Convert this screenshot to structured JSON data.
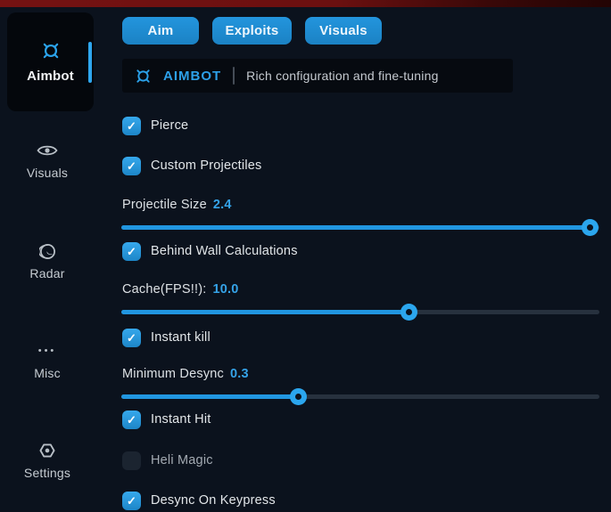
{
  "colors": {
    "accent_blue": "#2196dd",
    "checkbox_blue": "#2d9ce4",
    "value_blue": "#35a3e8",
    "top_strip_red": "#6e1010",
    "background": "#0b121d"
  },
  "icons": {
    "check_glyph": "✓",
    "ellipsis_glyph": "•••"
  },
  "sidebar": {
    "items": [
      {
        "id": "aimbot",
        "label": "Aimbot",
        "icon": "crosshair-icon",
        "active": true
      },
      {
        "id": "visuals",
        "label": "Visuals",
        "icon": "eye-icon",
        "active": false
      },
      {
        "id": "radar",
        "label": "Radar",
        "icon": "globe-icon",
        "active": false
      },
      {
        "id": "misc",
        "label": "Misc",
        "icon": "ellipsis-icon",
        "active": false
      },
      {
        "id": "settings",
        "label": "Settings",
        "icon": "gear-icon",
        "active": false
      }
    ]
  },
  "tabs": [
    {
      "label": "Aim"
    },
    {
      "label": "Exploits"
    },
    {
      "label": "Visuals"
    }
  ],
  "header": {
    "icon": "crosshair-icon",
    "title": "AIMBOT",
    "subtitle": "Rich configuration and fine-tuning"
  },
  "main": {
    "controls": [
      {
        "type": "checkbox",
        "label": "Pierce",
        "checked": true
      },
      {
        "type": "checkbox",
        "label": "Custom Projectiles",
        "checked": true
      },
      {
        "type": "slider",
        "label": "Projectile Size",
        "value": "2.4",
        "percent": 98
      },
      {
        "type": "checkbox",
        "label": "Behind Wall Calculations",
        "checked": true
      },
      {
        "type": "slider",
        "label": "Cache(FPS!!):",
        "value": "10.0",
        "percent": 60
      },
      {
        "type": "checkbox",
        "label": "Instant kill",
        "checked": true
      },
      {
        "type": "slider",
        "label": "Minimum Desync",
        "value": "0.3",
        "percent": 37
      },
      {
        "type": "checkbox",
        "label": "Instant Hit",
        "checked": true
      },
      {
        "type": "checkbox",
        "label": "Heli Magic",
        "checked": false
      },
      {
        "type": "checkbox",
        "label": "Desync On Keypress",
        "checked": true
      }
    ]
  }
}
